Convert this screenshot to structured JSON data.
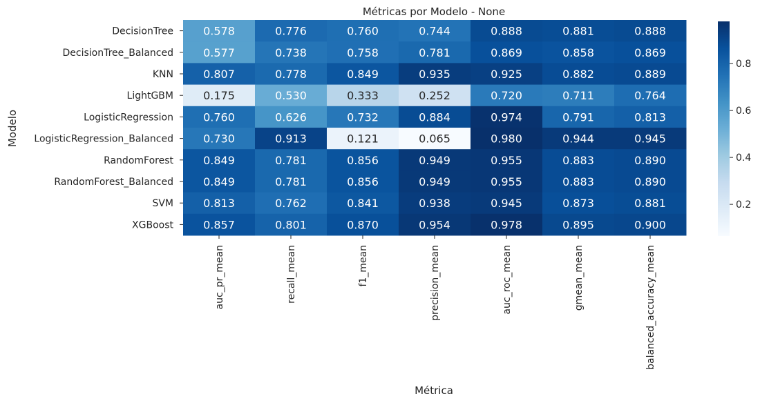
{
  "chart_data": {
    "type": "heatmap",
    "title": "Métricas por Modelo - None",
    "xlabel": "Métrica",
    "ylabel": "Modelo",
    "colormap": "Blues",
    "value_range": [
      0.065,
      0.98
    ],
    "colorbar": {
      "ticks": [
        0.2,
        0.4,
        0.6,
        0.8
      ],
      "tick_labels": [
        "0.2",
        "0.4",
        "0.6",
        "0.8"
      ]
    },
    "columns": [
      "auc_pr_mean",
      "recall_mean",
      "f1_mean",
      "precision_mean",
      "auc_roc_mean",
      "gmean_mean",
      "balanced_accuracy_mean"
    ],
    "rows": [
      "DecisionTree",
      "DecisionTree_Balanced",
      "KNN",
      "LightGBM",
      "LogisticRegression",
      "LogisticRegression_Balanced",
      "RandomForest",
      "RandomForest_Balanced",
      "SVM",
      "XGBoost"
    ],
    "values": [
      [
        0.578,
        0.776,
        0.76,
        0.744,
        0.888,
        0.881,
        0.888
      ],
      [
        0.577,
        0.738,
        0.758,
        0.781,
        0.869,
        0.858,
        0.869
      ],
      [
        0.807,
        0.778,
        0.849,
        0.935,
        0.925,
        0.882,
        0.889
      ],
      [
        0.175,
        0.53,
        0.333,
        0.252,
        0.72,
        0.711,
        0.764
      ],
      [
        0.76,
        0.626,
        0.732,
        0.884,
        0.974,
        0.791,
        0.813
      ],
      [
        0.73,
        0.913,
        0.121,
        0.065,
        0.98,
        0.944,
        0.945
      ],
      [
        0.849,
        0.781,
        0.856,
        0.949,
        0.955,
        0.883,
        0.89
      ],
      [
        0.849,
        0.781,
        0.856,
        0.949,
        0.955,
        0.883,
        0.89
      ],
      [
        0.813,
        0.762,
        0.841,
        0.938,
        0.945,
        0.873,
        0.881
      ],
      [
        0.857,
        0.801,
        0.87,
        0.954,
        0.978,
        0.895,
        0.9
      ]
    ],
    "value_format": "0.000"
  }
}
